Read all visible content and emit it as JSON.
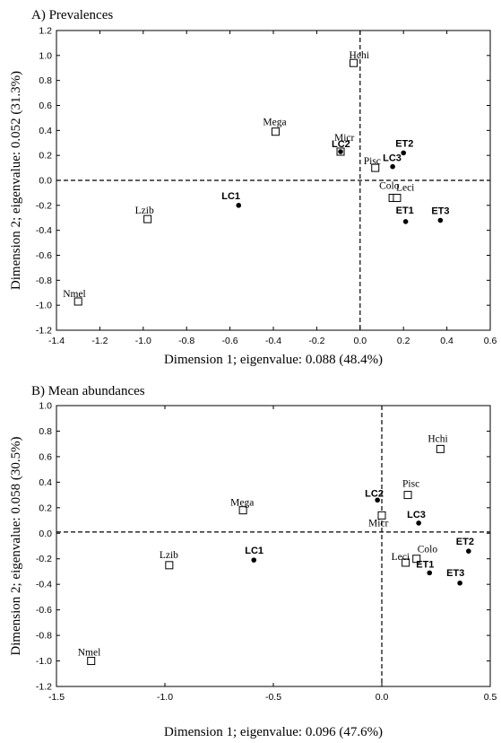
{
  "chart_data": [
    {
      "type": "scatter",
      "title": "A) Prevalences",
      "xlabel": "Dimension 1; eigenvalue: 0.088 (48.4%)",
      "ylabel": "Dimension 2; eigenvalue: 0.052 (31.3%)",
      "xlim": [
        -1.4,
        0.6
      ],
      "ylim": [
        -1.2,
        1.2
      ],
      "xticks": [
        -1.4,
        -1.2,
        -1.0,
        -0.8,
        -0.6,
        -0.4,
        -0.2,
        0.0,
        0.2,
        0.4,
        0.6
      ],
      "yticks": [
        -1.2,
        -1.0,
        -0.8,
        -0.6,
        -0.4,
        -0.2,
        0.0,
        0.2,
        0.4,
        0.6,
        0.8,
        1.0,
        1.2
      ],
      "xtick_labels": [
        "-1.4",
        "-1.2",
        "-1.0",
        "-0.8",
        "-0.6",
        "-0.4",
        "-0.2",
        "0.0",
        "0.2",
        "0.4",
        "0.6"
      ],
      "ytick_labels": [
        "-1.2",
        "-1.0",
        "-0.8",
        "-0.6",
        "-0.4",
        "-0.2",
        "0.0",
        "0.2",
        "0.4",
        "0.6",
        "0.8",
        "1.0",
        "1.2"
      ],
      "reference_lines": {
        "x": 0,
        "y": 0
      },
      "grid": false,
      "series": [
        {
          "marker": "open-square",
          "points": [
            {
              "label": "Hchi",
              "x": -0.03,
              "y": 0.94
            },
            {
              "label": "Mega",
              "x": -0.39,
              "y": 0.39
            },
            {
              "label": "Micr",
              "x": -0.09,
              "y": 0.23
            },
            {
              "label": "Pisc",
              "x": 0.07,
              "y": 0.1
            },
            {
              "label": "Colo",
              "x": 0.15,
              "y": -0.14
            },
            {
              "label": "Leci",
              "x": 0.17,
              "y": -0.14
            },
            {
              "label": "Lzib",
              "x": -0.98,
              "y": -0.31
            },
            {
              "label": "Nmel",
              "x": -1.3,
              "y": -0.97
            }
          ]
        },
        {
          "marker": "filled-circle",
          "points": [
            {
              "label": "LC2",
              "x": -0.09,
              "y": 0.23
            },
            {
              "label": "ET2",
              "x": 0.2,
              "y": 0.22
            },
            {
              "label": "LC3",
              "x": 0.15,
              "y": 0.11
            },
            {
              "label": "LC1",
              "x": -0.56,
              "y": -0.2
            },
            {
              "label": "ET1",
              "x": 0.21,
              "y": -0.33
            },
            {
              "label": "ET3",
              "x": 0.37,
              "y": -0.32
            }
          ]
        }
      ]
    },
    {
      "type": "scatter",
      "title": "B) Mean abundances",
      "xlabel": "Dimension 1; eigenvalue: 0.096 (47.6%)",
      "ylabel": "Dimension 2; eigenvalue: 0.058 (30.5%)",
      "xlim": [
        -1.5,
        0.5
      ],
      "ylim": [
        -1.2,
        1.0
      ],
      "xticks": [
        -1.5,
        -1.0,
        -0.5,
        0.0,
        0.5
      ],
      "yticks": [
        -1.2,
        -1.0,
        -0.8,
        -0.6,
        -0.4,
        -0.2,
        0.0,
        0.2,
        0.4,
        0.6,
        0.8,
        1.0
      ],
      "xtick_labels": [
        "-1.5",
        "-1.0",
        "-0.5",
        "0.0",
        "0.5"
      ],
      "ytick_labels": [
        "-1.2",
        "-1.0",
        "-0.8",
        "-0.6",
        "-0.4",
        "-0.2",
        "0.0",
        "0.2",
        "0.4",
        "0.6",
        "0.8",
        "1.0"
      ],
      "reference_lines": {
        "x": 0,
        "y": 0.01
      },
      "grid": false,
      "series": [
        {
          "marker": "open-square",
          "points": [
            {
              "label": "Hchi",
              "x": 0.27,
              "y": 0.66
            },
            {
              "label": "Pisc",
              "x": 0.12,
              "y": 0.3
            },
            {
              "label": "Mega",
              "x": -0.64,
              "y": 0.18
            },
            {
              "label": "Micr",
              "x": 0.0,
              "y": 0.14
            },
            {
              "label": "Colo",
              "x": 0.16,
              "y": -0.2
            },
            {
              "label": "Leci",
              "x": 0.11,
              "y": -0.23
            },
            {
              "label": "Lzib",
              "x": -0.98,
              "y": -0.25
            },
            {
              "label": "Nmel",
              "x": -1.34,
              "y": -1.0
            }
          ]
        },
        {
          "marker": "filled-circle",
          "points": [
            {
              "label": "LC2",
              "x": -0.02,
              "y": 0.26
            },
            {
              "label": "LC3",
              "x": 0.17,
              "y": 0.08
            },
            {
              "label": "ET2",
              "x": 0.4,
              "y": -0.14
            },
            {
              "label": "LC1",
              "x": -0.59,
              "y": -0.21
            },
            {
              "label": "ET1",
              "x": 0.22,
              "y": -0.31
            },
            {
              "label": "ET3",
              "x": 0.36,
              "y": -0.39
            }
          ]
        }
      ]
    }
  ]
}
